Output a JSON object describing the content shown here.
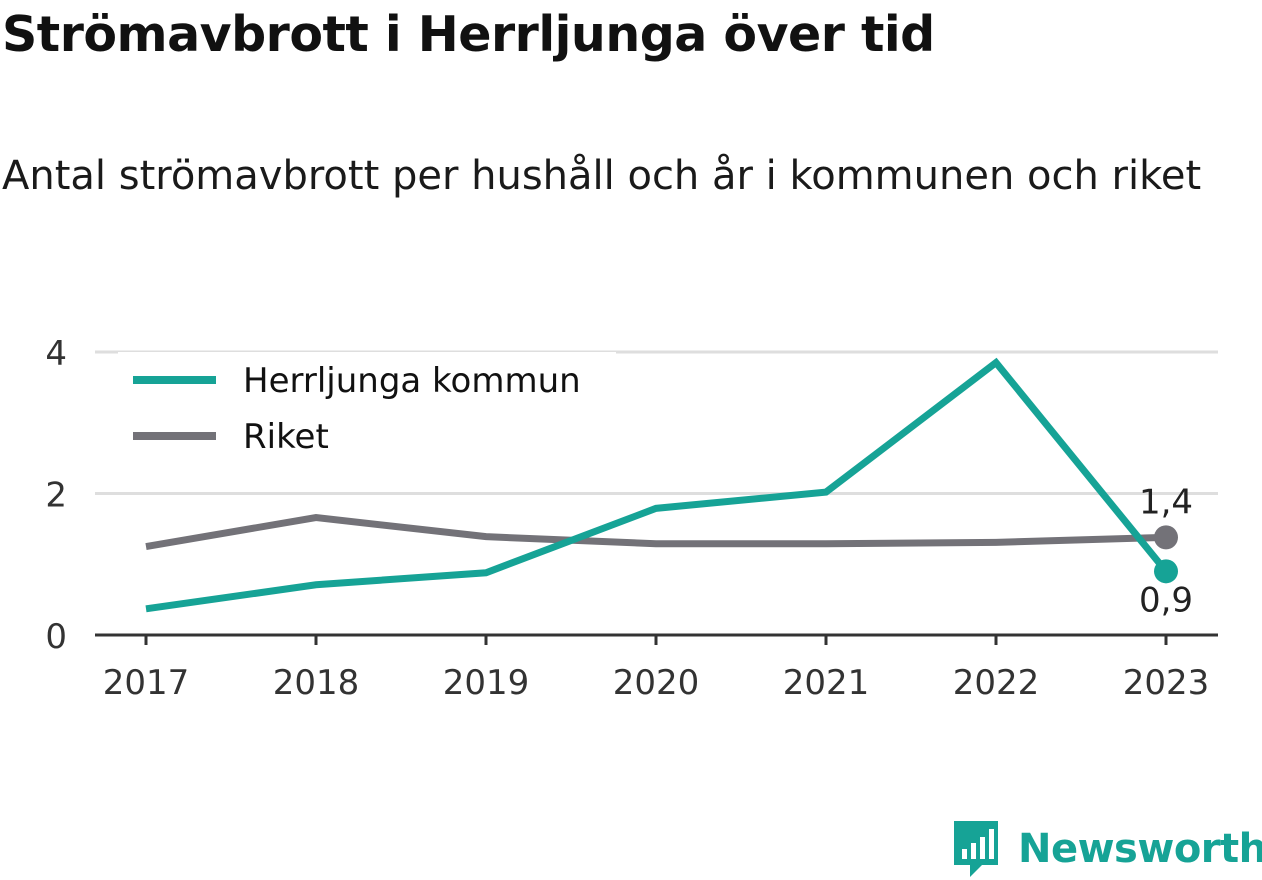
{
  "title": "Strömavbrott i Herrljunga över tid",
  "subtitle": "Antal strömavbrott per hushåll och år i kommunen och riket",
  "brand": {
    "name": "Newsworthy",
    "icon": "newsworthy-logo-icon",
    "color": "#16a396"
  },
  "chart_data": {
    "type": "line",
    "x": [
      "2017",
      "2018",
      "2019",
      "2020",
      "2021",
      "2022",
      "2023"
    ],
    "yticks": [
      "0",
      "2",
      "4"
    ],
    "ylim": [
      0,
      4
    ],
    "grid": true,
    "legend_position": "top-left",
    "series": [
      {
        "name": "Herrljunga kommun",
        "color": "#16a396",
        "values": [
          0.37,
          0.71,
          0.88,
          1.79,
          2.02,
          3.85,
          0.9
        ],
        "end_label": "0,9"
      },
      {
        "name": "Riket",
        "color": "#737278",
        "values": [
          1.25,
          1.66,
          1.39,
          1.29,
          1.29,
          1.31,
          1.38
        ],
        "end_label": "1,4"
      }
    ]
  }
}
